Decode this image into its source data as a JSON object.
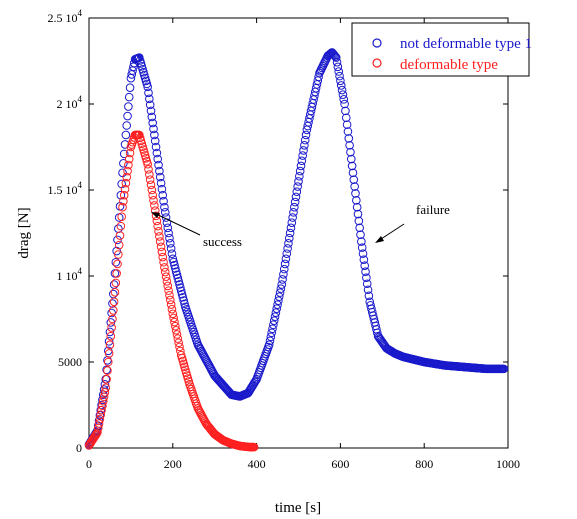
{
  "chart_data": {
    "type": "scatter",
    "xlabel": "time [s]",
    "ylabel": "drag [N]",
    "xlim": [
      0,
      1000
    ],
    "ylim": [
      0,
      25000
    ],
    "x_ticks": [
      {
        "value": 0,
        "label": "0"
      },
      {
        "value": 200,
        "label": "200"
      },
      {
        "value": 400,
        "label": "400"
      },
      {
        "value": 600,
        "label": "600"
      },
      {
        "value": 800,
        "label": "800"
      },
      {
        "value": 1000,
        "label": "1000"
      }
    ],
    "y_ticks": [
      {
        "value": 0,
        "mantissa": "0",
        "exp": ""
      },
      {
        "value": 5000,
        "mantissa": "5000",
        "exp": ""
      },
      {
        "value": 10000,
        "mantissa": "1 10",
        "exp": "4"
      },
      {
        "value": 15000,
        "mantissa": "1.5 10",
        "exp": "4"
      },
      {
        "value": 20000,
        "mantissa": "2 10",
        "exp": "4"
      },
      {
        "value": 25000,
        "mantissa": "2.5 10",
        "exp": "4"
      }
    ],
    "grid": false,
    "legend_position": "top-right",
    "series": [
      {
        "name": "not deformable type 1",
        "color": "#1a1acc",
        "marker": "open-circle",
        "x": [
          0,
          20,
          40,
          60,
          80,
          100,
          110,
          120,
          140,
          160,
          180,
          200,
          230,
          260,
          300,
          340,
          360,
          380,
          400,
          430,
          460,
          490,
          520,
          550,
          570,
          580,
          590,
          610,
          630,
          650,
          670,
          690,
          710,
          730,
          750,
          800,
          850,
          900,
          950,
          990
        ],
        "y": [
          200,
          1000,
          4000,
          9500,
          16000,
          21500,
          22600,
          22700,
          21000,
          17500,
          14000,
          11000,
          8200,
          6000,
          4200,
          3100,
          3000,
          3200,
          4000,
          6000,
          9500,
          14000,
          18500,
          21800,
          22800,
          23000,
          22700,
          20000,
          16000,
          12000,
          8500,
          6500,
          5800,
          5500,
          5300,
          5000,
          4800,
          4700,
          4600,
          4600
        ]
      },
      {
        "name": "deformable type",
        "color": "#ff2020",
        "marker": "open-circle",
        "x": [
          0,
          20,
          40,
          60,
          80,
          100,
          110,
          120,
          140,
          160,
          180,
          200,
          220,
          240,
          260,
          280,
          300,
          320,
          340,
          360,
          380,
          395
        ],
        "y": [
          150,
          900,
          3500,
          8500,
          14000,
          17500,
          18200,
          18200,
          16500,
          13500,
          10500,
          7800,
          5400,
          3700,
          2300,
          1400,
          800,
          450,
          250,
          120,
          60,
          50
        ]
      }
    ],
    "annotations": [
      {
        "text": "success",
        "points_to": [
          140,
          14000
        ]
      },
      {
        "text": "failure",
        "points_to": [
          655,
          12300
        ]
      }
    ]
  }
}
